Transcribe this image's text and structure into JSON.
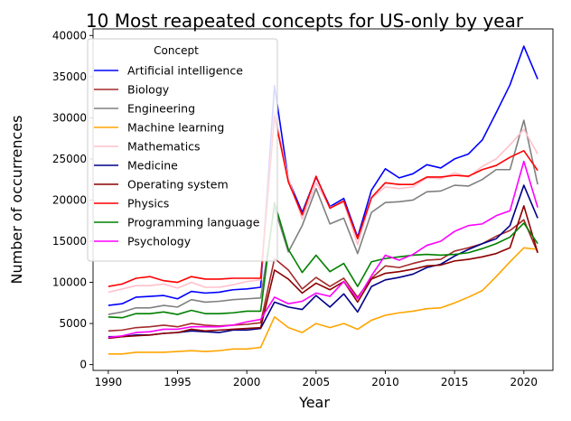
{
  "chart_data": {
    "type": "line",
    "title": "10 Most reapeated concepts for US-only by year",
    "xlabel": "Year",
    "ylabel": "Number of occurrences",
    "xlim": [
      1988.9,
      2022.1
    ],
    "ylim": [
      -700,
      40800
    ],
    "xticks": [
      1990,
      1995,
      2000,
      2005,
      2010,
      2015,
      2020
    ],
    "yticks": [
      0,
      5000,
      10000,
      15000,
      20000,
      25000,
      30000,
      35000,
      40000
    ],
    "grid": false,
    "legend": {
      "title": "Concept",
      "placement": "top-left"
    },
    "x": [
      1990,
      1991,
      1992,
      1993,
      1994,
      1995,
      1996,
      1997,
      1998,
      1999,
      2000,
      2001,
      2002,
      2003,
      2004,
      2005,
      2006,
      2007,
      2008,
      2009,
      2010,
      2011,
      2012,
      2013,
      2014,
      2015,
      2016,
      2017,
      2018,
      2019,
      2020,
      2021
    ],
    "series": [
      {
        "name": "Artificial intelligence",
        "color": "#0000ff",
        "values": [
          7200,
          7400,
          8200,
          8300,
          8400,
          8000,
          8900,
          8700,
          8800,
          9100,
          9200,
          9400,
          33900,
          22500,
          18500,
          22800,
          19200,
          20200,
          15500,
          21200,
          23800,
          22700,
          23200,
          24300,
          23900,
          25000,
          25600,
          27300,
          30600,
          34000,
          38700,
          34700
        ]
      },
      {
        "name": "Biology",
        "color": "#a52a2a",
        "values": [
          4100,
          4200,
          4500,
          4600,
          4800,
          4600,
          5000,
          4800,
          4700,
          4800,
          4900,
          5100,
          12900,
          11500,
          9200,
          10600,
          9500,
          10500,
          8200,
          10500,
          12000,
          11800,
          12300,
          12700,
          12800,
          13800,
          14200,
          14700,
          15600,
          16300,
          17600,
          13600
        ]
      },
      {
        "name": "Engineering",
        "color": "#808080",
        "values": [
          6100,
          6400,
          6900,
          6900,
          7200,
          7000,
          7900,
          7600,
          7700,
          7900,
          8000,
          8100,
          19100,
          13700,
          16900,
          21400,
          17100,
          17800,
          13500,
          18500,
          19700,
          19800,
          20000,
          21000,
          21100,
          21800,
          21700,
          22500,
          23700,
          23700,
          29700,
          21900
        ]
      },
      {
        "name": "Machine learning",
        "color": "#ffa500",
        "values": [
          1300,
          1300,
          1500,
          1500,
          1500,
          1600,
          1700,
          1600,
          1700,
          1900,
          1900,
          2100,
          5800,
          4500,
          3900,
          5000,
          4500,
          5000,
          4300,
          5400,
          6000,
          6300,
          6500,
          6800,
          6900,
          7500,
          8200,
          9000,
          10700,
          12500,
          14200,
          14000
        ]
      },
      {
        "name": "Mathematics",
        "color": "#ffc0cb",
        "values": [
          8800,
          9200,
          9600,
          9600,
          9800,
          9300,
          10000,
          9400,
          9400,
          9700,
          10100,
          10300,
          30700,
          22600,
          17700,
          22100,
          19100,
          19700,
          14600,
          20200,
          21600,
          21400,
          21600,
          22700,
          22600,
          23300,
          22800,
          24100,
          25000,
          26700,
          28600,
          25600
        ]
      },
      {
        "name": "Medicine",
        "color": "#00008b",
        "values": [
          3400,
          3400,
          3600,
          3600,
          3800,
          3900,
          4100,
          4000,
          3900,
          4200,
          4200,
          4400,
          7600,
          7000,
          6700,
          8400,
          7000,
          8600,
          6400,
          9500,
          10300,
          10600,
          11000,
          11800,
          12200,
          13200,
          14000,
          14700,
          15300,
          16900,
          21800,
          17800
        ]
      },
      {
        "name": "Operating system",
        "color": "#8b0000",
        "values": [
          3200,
          3400,
          3500,
          3600,
          3800,
          3900,
          4300,
          4100,
          4200,
          4300,
          4400,
          4500,
          11500,
          10400,
          8700,
          9900,
          9100,
          10100,
          7600,
          10400,
          11100,
          11300,
          11600,
          12000,
          12100,
          12600,
          12800,
          13100,
          13500,
          14200,
          19300,
          13600
        ]
      },
      {
        "name": "Physics",
        "color": "#ff0000",
        "values": [
          9500,
          9800,
          10500,
          10700,
          10200,
          10000,
          10700,
          10400,
          10400,
          10500,
          10500,
          10500,
          30200,
          22200,
          18200,
          22900,
          19000,
          19900,
          15300,
          20300,
          22100,
          21900,
          21900,
          22800,
          22800,
          23000,
          22900,
          23700,
          24200,
          25200,
          26000,
          23600
        ]
      },
      {
        "name": "Programming language",
        "color": "#008000",
        "values": [
          5800,
          5700,
          6200,
          6200,
          6400,
          6100,
          6600,
          6200,
          6200,
          6300,
          6500,
          6500,
          19700,
          14000,
          11200,
          13300,
          11300,
          12300,
          9500,
          12500,
          12900,
          13100,
          13300,
          13400,
          13300,
          13400,
          13600,
          14100,
          14700,
          15500,
          17200,
          14700
        ]
      },
      {
        "name": "Psychology",
        "color": "#ff00ff",
        "values": [
          3300,
          3500,
          3900,
          4000,
          4300,
          4300,
          4600,
          4600,
          4600,
          4800,
          5200,
          5500,
          8200,
          7400,
          7700,
          8700,
          8300,
          10100,
          8000,
          10800,
          13300,
          12700,
          13400,
          14500,
          15000,
          16200,
          16900,
          17100,
          18100,
          18700,
          24700,
          19100
        ]
      }
    ]
  }
}
